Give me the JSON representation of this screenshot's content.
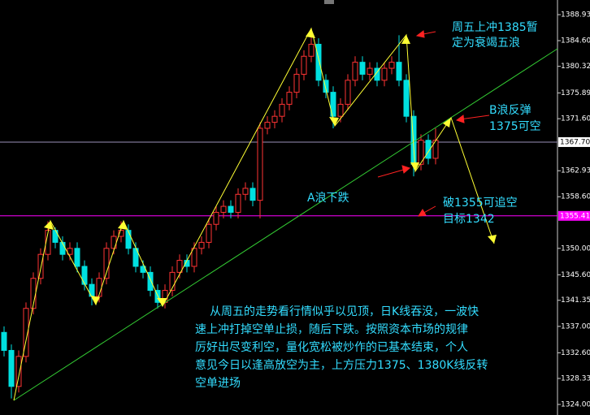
{
  "chart_data": {
    "type": "candlestick",
    "open": [
      1336,
      1333,
      1327,
      1332,
      1340,
      1345,
      1349,
      1353,
      1351,
      1349,
      1350,
      1347,
      1344,
      1342,
      1345,
      1350,
      1352,
      1353,
      1350,
      1347,
      1346,
      1343,
      1341,
      1343,
      1346,
      1348,
      1347,
      1350,
      1351,
      1354,
      1356,
      1357,
      1356,
      1359,
      1360,
      1358,
      1370,
      1371,
      1372,
      1374,
      1376,
      1379,
      1382,
      1384,
      1378,
      1376,
      1372,
      1374,
      1378,
      1381,
      1379,
      1380,
      1378,
      1380,
      1381,
      1378,
      1372,
      1364,
      1368,
      1365
    ],
    "high": [
      1337,
      1334,
      1333,
      1341,
      1346,
      1350,
      1354.5,
      1353.5,
      1352,
      1351,
      1351,
      1348,
      1345,
      1346,
      1351,
      1353,
      1354.5,
      1354,
      1351,
      1348,
      1347,
      1344,
      1344,
      1347,
      1349,
      1349,
      1351,
      1352,
      1355,
      1357,
      1358,
      1358,
      1360,
      1361,
      1361,
      1371,
      1372,
      1373,
      1375,
      1377,
      1380,
      1383,
      1386.5,
      1385,
      1379,
      1377,
      1375,
      1379,
      1382,
      1382,
      1381,
      1381,
      1381,
      1382,
      1385.5,
      1379,
      1373,
      1369,
      1369,
      1370
    ],
    "low": [
      1332,
      1325,
      1326,
      1331,
      1339,
      1344,
      1348,
      1350,
      1348,
      1348,
      1346,
      1343,
      1340.5,
      1341,
      1344,
      1349,
      1351,
      1349,
      1346,
      1345,
      1342,
      1340,
      1340,
      1342,
      1345,
      1346,
      1346,
      1349,
      1350,
      1353,
      1355,
      1355,
      1355,
      1358,
      1357,
      1355,
      1369,
      1370,
      1371,
      1373,
      1375,
      1378,
      1381,
      1377,
      1375,
      1370,
      1371,
      1373,
      1377,
      1378,
      1378,
      1377,
      1377,
      1379,
      1377,
      1371,
      1362,
      1363,
      1364,
      1364
    ],
    "close": [
      1333,
      1327,
      1332,
      1340,
      1345,
      1349,
      1353,
      1351,
      1349,
      1350,
      1347,
      1344,
      1342,
      1345,
      1350,
      1352,
      1353,
      1350,
      1347,
      1346,
      1343,
      1341,
      1343,
      1346,
      1348,
      1347,
      1350,
      1351,
      1354,
      1356,
      1357,
      1356,
      1359,
      1360,
      1358,
      1370,
      1371,
      1372,
      1374,
      1376,
      1379,
      1382,
      1384,
      1378,
      1376,
      1372,
      1374,
      1378,
      1381,
      1379,
      1380,
      1378,
      1380,
      1381,
      1378,
      1372,
      1364,
      1368,
      1365,
      1368
    ],
    "up_color": "#ff3333",
    "down_color": "#00e0e0",
    "ylim": [
      1322.24,
      1391.37
    ],
    "yticks": [
      {
        "value": 1388.93,
        "label": "1388.93"
      },
      {
        "value": 1384.6,
        "label": "1384.60"
      },
      {
        "value": 1380.32,
        "label": "1380.32"
      },
      {
        "value": 1375.89,
        "label": "1375.89"
      },
      {
        "value": 1371.6,
        "label": "1371.60"
      },
      {
        "value": 1362.93,
        "label": "1362.93"
      },
      {
        "value": 1358.6,
        "label": "1358.60"
      },
      {
        "value": 1350,
        "label": "1350.00"
      },
      {
        "value": 1345.6,
        "label": "1345.60"
      },
      {
        "value": 1341.35,
        "label": "1341.35"
      },
      {
        "value": 1337,
        "label": "1337.00"
      },
      {
        "value": 1332.6,
        "label": "1332.60"
      },
      {
        "value": 1328.33,
        "label": "1328.33"
      },
      {
        "value": 1324,
        "label": "1324.00"
      }
    ],
    "price_lines": [
      {
        "value": 1367.7,
        "label": "1367.70",
        "color": "#9a8fb8"
      },
      {
        "value": 1355.41,
        "label": "1355.41",
        "color": "#ff00ff"
      }
    ],
    "annotations": {
      "peak": [
        "周五上冲1385暂",
        "定为衰竭五浪"
      ],
      "wave_b": [
        "B浪反弹",
        "1375可空"
      ],
      "wave_a": [
        "A浪下跌"
      ],
      "break": [
        "破1355可追空",
        "目标1342"
      ],
      "comment": [
        "从周五的走势看行情似乎以见顶，日K线吞没，一波快",
        "速上冲打掉空单止损，随后下跌。按照资本市场的规律",
        "厉好出尽变利空，量化宽松被炒作的已基本结束，个人",
        "意见今日以逢高放空为主，上方压力1375、1380K线反转",
        "空单进场"
      ]
    }
  }
}
